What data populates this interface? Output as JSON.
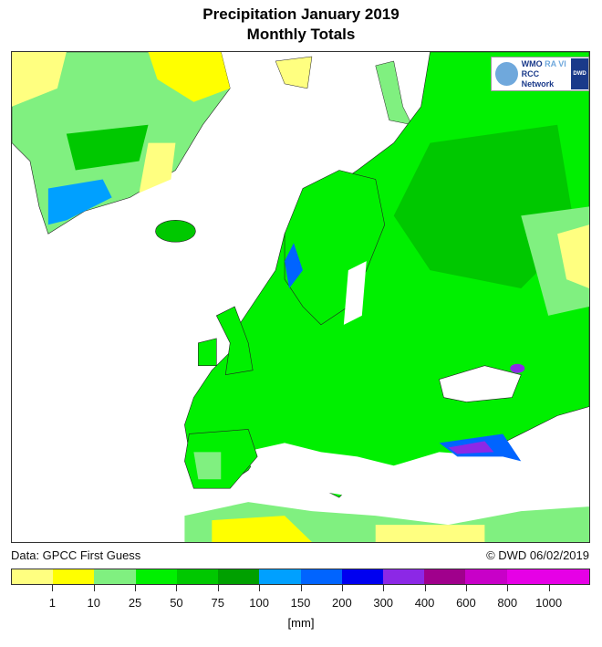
{
  "title": "Precipitation January 2019",
  "subtitle": "Monthly Totals",
  "logo": {
    "text1": "WMO",
    "text2": "RA VI",
    "text3": "RCC Network",
    "badge": "DWD"
  },
  "source": "Data: GPCC First Guess",
  "credit": "© DWD 06/02/2019",
  "legend": {
    "unit": "[mm]",
    "labels": [
      "1",
      "10",
      "25",
      "50",
      "75",
      "100",
      "150",
      "200",
      "300",
      "400",
      "600",
      "800",
      "1000"
    ],
    "colors": [
      "#ffff80",
      "#ffff00",
      "#80f080",
      "#00f000",
      "#00c800",
      "#00a000",
      "#00a0ff",
      "#0064ff",
      "#0000f0",
      "#8c28e6",
      "#a0008c",
      "#c800c8",
      "#e600e6",
      "#e600e6"
    ]
  }
}
